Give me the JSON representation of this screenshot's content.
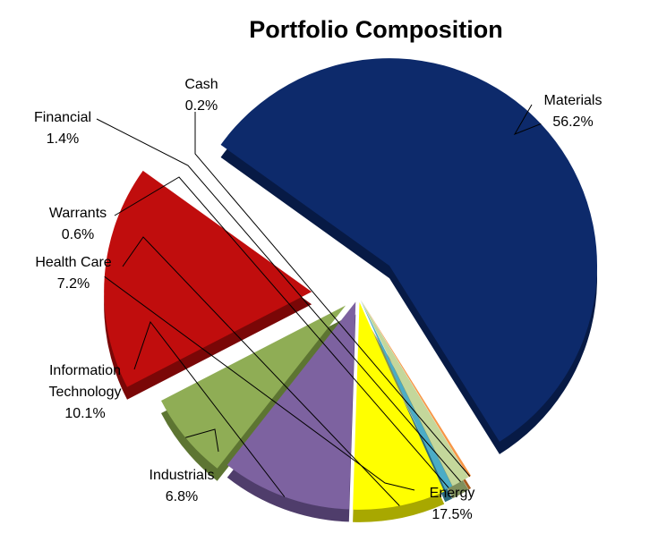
{
  "chart_data": {
    "type": "pie",
    "title": "Portfolio Composition",
    "slices": [
      {
        "label": [
          "Materials"
        ],
        "value": 56.2,
        "display": "56.2%",
        "color": "#0d2a6b",
        "side": "#071a45"
      },
      {
        "label": [
          "Energy"
        ],
        "value": 17.5,
        "display": "17.5%",
        "color": "#c00d0d",
        "side": "#7a0707"
      },
      {
        "label": [
          "Industrials"
        ],
        "value": 6.8,
        "display": "6.8%",
        "color": "#8fad55",
        "side": "#5d7532"
      },
      {
        "label": [
          "Information",
          "Technology"
        ],
        "value": 10.1,
        "display": "10.1%",
        "color": "#7d62a0",
        "side": "#4f3d6b"
      },
      {
        "label": [
          "Health Care"
        ],
        "value": 7.2,
        "display": "7.2%",
        "color": "#ffff00",
        "side": "#a8a800"
      },
      {
        "label": [
          "Warrants"
        ],
        "value": 0.6,
        "display": "0.6%",
        "color": "#4bacc6",
        "side": "#2a6a7c"
      },
      {
        "label": [
          "Financial"
        ],
        "value": 1.4,
        "display": "1.4%",
        "color": "#c4d79b",
        "side": "#7f8f5c"
      },
      {
        "label": [
          "Cash"
        ],
        "value": 0.2,
        "display": "0.2%",
        "color": "#f79646",
        "side": "#a65c1f"
      }
    ],
    "legend": "none"
  }
}
